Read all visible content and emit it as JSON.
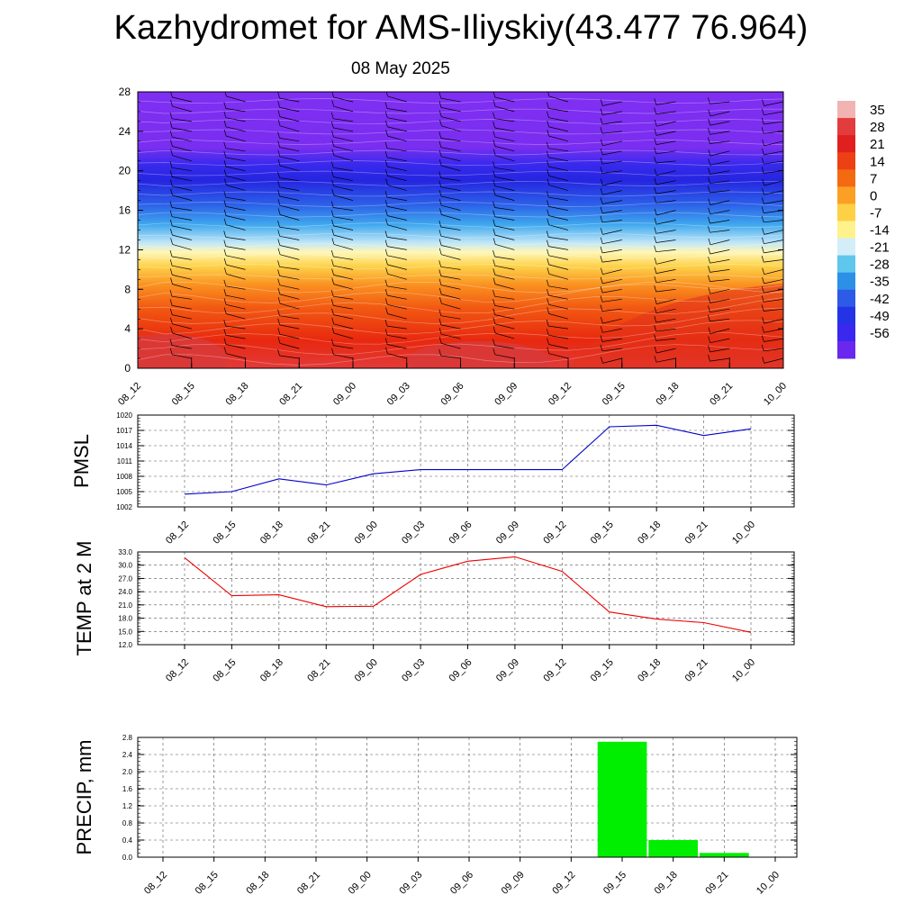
{
  "title": "Kazhydromet for AMS-Iliyskiy(43.477 76.964)",
  "subtitle": "08 May 2025",
  "colorbar": {
    "labels": [
      "35",
      "28",
      "21",
      "14",
      "7",
      "0",
      "-7",
      "-14",
      "-21",
      "-28",
      "-35",
      "-42",
      "-49",
      "-56"
    ],
    "colors": [
      "#f2b3b3",
      "#e23c3c",
      "#e0201f",
      "#ee4015",
      "#f46a10",
      "#fba024",
      "#fed045",
      "#fff28c",
      "#d3eef8",
      "#5fc6ee",
      "#2b90e6",
      "#2e5ae8",
      "#2433e6",
      "#3a28ee",
      "#6a28ee"
    ]
  },
  "chart_data": [
    {
      "type": "heatmap",
      "name": "cross-section temperature with wind barbs",
      "categories": [
        "08_12",
        "08_15",
        "08_18",
        "08_21",
        "09_00",
        "09_03",
        "09_06",
        "09_09",
        "09_12",
        "09_15",
        "09_18",
        "09_21",
        "10_00"
      ],
      "y_ticks": [
        "0",
        "4",
        "8",
        "12",
        "16",
        "20",
        "24",
        "28"
      ],
      "ylim": [
        0,
        28
      ],
      "value_range": [
        -56,
        35
      ]
    },
    {
      "type": "line",
      "ylabel": "PMSL",
      "categories": [
        "08_12",
        "08_15",
        "08_18",
        "08_21",
        "09_00",
        "09_03",
        "09_06",
        "09_09",
        "09_12",
        "09_15",
        "09_18",
        "09_21",
        "10_00"
      ],
      "values": [
        1004.5,
        1005.0,
        1007.5,
        1006.3,
        1008.5,
        1009.3,
        1009.3,
        1009.3,
        1009.3,
        1017.7,
        1018.0,
        1016.0,
        1017.3
      ],
      "ylim": [
        1002,
        1020
      ],
      "y_ticks": [
        "1002",
        "1005",
        "1008",
        "1011",
        "1014",
        "1017",
        "1020"
      ],
      "color": "#0000cc"
    },
    {
      "type": "line",
      "ylabel": "TEMP at 2 M",
      "categories": [
        "08_12",
        "08_15",
        "08_18",
        "08_21",
        "09_00",
        "09_03",
        "09_06",
        "09_09",
        "09_12",
        "09_15",
        "09_18",
        "09_21",
        "10_00"
      ],
      "values": [
        31.7,
        23.1,
        23.3,
        20.6,
        20.7,
        27.9,
        30.9,
        31.9,
        28.6,
        19.4,
        17.8,
        17.0,
        14.8
      ],
      "ylim": [
        12,
        33
      ],
      "y_ticks": [
        "12.0",
        "15.0",
        "18.0",
        "21.0",
        "24.0",
        "27.0",
        "30.0",
        "33.0"
      ],
      "color": "#ee0000"
    },
    {
      "type": "bar",
      "ylabel": "PRECIP, mm",
      "categories": [
        "08_12",
        "08_15",
        "08_18",
        "08_21",
        "09_00",
        "09_03",
        "09_06",
        "09_09",
        "09_12",
        "09_15",
        "09_18",
        "09_21",
        "10_00"
      ],
      "values": [
        0,
        0,
        0,
        0,
        0,
        0,
        0,
        0,
        0,
        2.7,
        0.4,
        0.1,
        0
      ],
      "ylim": [
        0,
        2.8
      ],
      "y_ticks": [
        "0.0",
        "0.4",
        "0.8",
        "1.2",
        "1.6",
        "2.0",
        "2.4",
        "2.8"
      ],
      "color": "#00ee00"
    }
  ]
}
